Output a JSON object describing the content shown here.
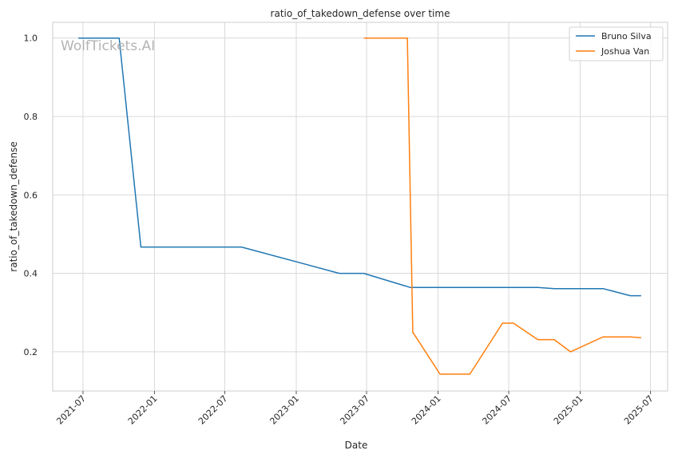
{
  "watermark": "WolfTickets.AI",
  "chart_data": {
    "type": "line",
    "title": "ratio_of_takedown_defense over time",
    "xlabel": "Date",
    "ylabel": "ratio_of_takedown_defense",
    "x_ticks": [
      "2021-07",
      "2022-01",
      "2022-07",
      "2023-01",
      "2023-07",
      "2024-01",
      "2024-07",
      "2025-01",
      "2025-07"
    ],
    "y_ticks": [
      "0.2",
      "0.4",
      "0.6",
      "0.8",
      "1.0"
    ],
    "xlim": [
      "2021-04-14",
      "2025-08-14"
    ],
    "ylim": [
      0.1,
      1.04
    ],
    "grid": true,
    "legend_position": "top-right",
    "series": [
      {
        "name": "Bruno Silva",
        "color": "#1f77b4",
        "points": [
          [
            "2021-06-19",
            1.0
          ],
          [
            "2021-10-02",
            1.0
          ],
          [
            "2021-11-27",
            0.467
          ],
          [
            "2022-08-13",
            0.467
          ],
          [
            "2023-04-22",
            0.4
          ],
          [
            "2023-06-24",
            0.4
          ],
          [
            "2023-10-21",
            0.364
          ],
          [
            "2024-09-14",
            0.364
          ],
          [
            "2024-10-26",
            0.361
          ],
          [
            "2025-03-01",
            0.361
          ],
          [
            "2025-05-10",
            0.343
          ],
          [
            "2025-06-07",
            0.343
          ]
        ]
      },
      {
        "name": "Joshua Van",
        "color": "#ff7f0e",
        "points": [
          [
            "2023-06-24",
            1.0
          ],
          [
            "2023-10-14",
            1.0
          ],
          [
            "2023-10-28",
            0.25
          ],
          [
            "2024-01-06",
            0.143
          ],
          [
            "2024-03-23",
            0.143
          ],
          [
            "2024-06-15",
            0.273
          ],
          [
            "2024-07-13",
            0.273
          ],
          [
            "2024-09-14",
            0.231
          ],
          [
            "2024-10-26",
            0.231
          ],
          [
            "2024-12-07",
            0.2
          ],
          [
            "2025-03-01",
            0.238
          ],
          [
            "2025-05-10",
            0.238
          ],
          [
            "2025-06-07",
            0.236
          ]
        ]
      }
    ]
  }
}
